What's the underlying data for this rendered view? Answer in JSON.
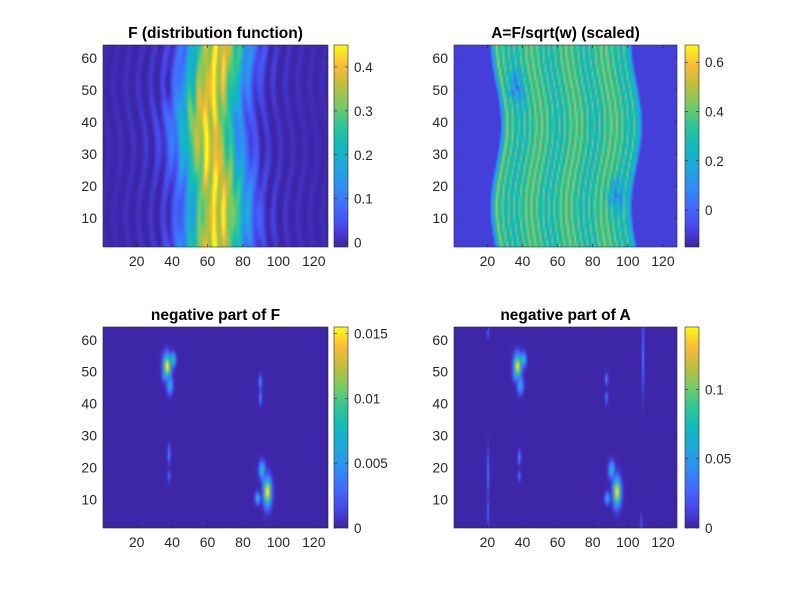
{
  "figure": {
    "background": "#ffffff",
    "colormap": "parula"
  },
  "chart_data": [
    {
      "type": "heatmap",
      "title": "F (distribution function)",
      "xlim": [
        1,
        128
      ],
      "ylim": [
        1,
        64
      ],
      "xticks": [
        20,
        40,
        60,
        80,
        100,
        120
      ],
      "yticks": [
        10,
        20,
        30,
        40,
        50,
        60
      ],
      "xtick_labels": [
        "20",
        "40",
        "60",
        "80",
        "100",
        "120"
      ],
      "ytick_labels": [
        "10",
        "20",
        "30",
        "40",
        "50",
        "60"
      ],
      "colorbar": {
        "ticks": [
          0,
          0.1,
          0.2,
          0.3,
          0.4
        ],
        "tick_labels": [
          "0",
          "0.1",
          "0.2",
          "0.3",
          "0.4"
        ],
        "clim": [
          -0.01,
          0.45
        ]
      },
      "field": {
        "kind": "distribution",
        "peak": 0.44,
        "center": 63,
        "width": 12,
        "wave_amp": 3,
        "background": -0.005,
        "streak_amp": 0.04,
        "vortices": [
          {
            "x": 37,
            "y": 50,
            "r": 5,
            "depth": 0.03
          },
          {
            "x": 92,
            "y": 17,
            "r": 5,
            "depth": 0.03
          }
        ]
      }
    },
    {
      "type": "heatmap",
      "title": "A=F/sqrt(w) (scaled)",
      "xlim": [
        1,
        128
      ],
      "ylim": [
        1,
        64
      ],
      "xticks": [
        20,
        40,
        60,
        80,
        100,
        120
      ],
      "yticks": [
        10,
        20,
        30,
        40,
        50,
        60
      ],
      "xtick_labels": [
        "20",
        "40",
        "60",
        "80",
        "100",
        "120"
      ],
      "ytick_labels": [
        "10",
        "20",
        "30",
        "40",
        "50",
        "60"
      ],
      "colorbar": {
        "ticks": [
          0,
          0.2,
          0.4,
          0.6
        ],
        "tick_labels": [
          "0",
          "0.2",
          "0.4",
          "0.6"
        ],
        "clim": [
          -0.15,
          0.67
        ]
      },
      "field": {
        "kind": "scaled",
        "background": -0.09,
        "band": [
          24,
          106
        ],
        "base": 0.26,
        "stripe_amp": 0.22,
        "wave_amp": 3,
        "vortices": [
          {
            "x": 36,
            "y": 51,
            "r": 5,
            "depth": 0.25
          },
          {
            "x": 93,
            "y": 17,
            "r": 5,
            "depth": 0.25
          }
        ]
      }
    },
    {
      "type": "heatmap",
      "title": "negative part of F",
      "xlim": [
        1,
        128
      ],
      "ylim": [
        1,
        64
      ],
      "xticks": [
        20,
        40,
        60,
        80,
        100,
        120
      ],
      "yticks": [
        10,
        20,
        30,
        40,
        50,
        60
      ],
      "xtick_labels": [
        "20",
        "40",
        "60",
        "80",
        "100",
        "120"
      ],
      "ytick_labels": [
        "10",
        "20",
        "30",
        "40",
        "50",
        "60"
      ],
      "colorbar": {
        "ticks": [
          0,
          0.005,
          0.01,
          0.015
        ],
        "tick_labels": [
          "0",
          "0.005",
          "0.01",
          "0.015"
        ],
        "clim": [
          0,
          0.0155
        ]
      },
      "field": {
        "kind": "sparse",
        "background": 0,
        "blobs": [
          {
            "x": 37,
            "y": 52,
            "sx": 1.5,
            "sy": 2.5,
            "v": 0.0155
          },
          {
            "x": 40,
            "y": 54,
            "sx": 1.2,
            "sy": 1.5,
            "v": 0.009
          },
          {
            "x": 38.5,
            "y": 46,
            "sx": 1.2,
            "sy": 1.8,
            "v": 0.007
          },
          {
            "x": 35.5,
            "y": 49.5,
            "sx": 1.0,
            "sy": 1.5,
            "v": 0.006
          },
          {
            "x": 90,
            "y": 47,
            "sx": 0.6,
            "sy": 1.5,
            "v": 0.005
          },
          {
            "x": 90,
            "y": 42,
            "sx": 0.6,
            "sy": 1.5,
            "v": 0.004
          },
          {
            "x": 38,
            "y": 24,
            "sx": 0.6,
            "sy": 2.0,
            "v": 0.004
          },
          {
            "x": 38,
            "y": 17,
            "sx": 0.6,
            "sy": 1.2,
            "v": 0.003
          },
          {
            "x": 94,
            "y": 12,
            "sx": 1.5,
            "sy": 3.0,
            "v": 0.0155
          },
          {
            "x": 91,
            "y": 19,
            "sx": 1.2,
            "sy": 1.8,
            "v": 0.008
          },
          {
            "x": 88.5,
            "y": 10,
            "sx": 1.0,
            "sy": 1.2,
            "v": 0.007
          },
          {
            "x": 92,
            "y": 15.5,
            "sx": 1.0,
            "sy": 1.0,
            "v": 0.005
          }
        ]
      }
    },
    {
      "type": "heatmap",
      "title": "negative part of A",
      "xlim": [
        1,
        128
      ],
      "ylim": [
        1,
        64
      ],
      "xticks": [
        20,
        40,
        60,
        80,
        100,
        120
      ],
      "yticks": [
        10,
        20,
        30,
        40,
        50,
        60
      ],
      "xtick_labels": [
        "20",
        "40",
        "60",
        "80",
        "100",
        "120"
      ],
      "ytick_labels": [
        "10",
        "20",
        "30",
        "40",
        "50",
        "60"
      ],
      "colorbar": {
        "ticks": [
          0,
          0.05,
          0.1
        ],
        "tick_labels": [
          "0",
          "0.05",
          "0.1"
        ],
        "clim": [
          0,
          0.145
        ]
      },
      "field": {
        "kind": "sparse",
        "background": 0,
        "blobs": [
          {
            "x": 37,
            "y": 52,
            "sx": 1.5,
            "sy": 2.5,
            "v": 0.14
          },
          {
            "x": 40,
            "y": 54,
            "sx": 1.2,
            "sy": 1.5,
            "v": 0.08
          },
          {
            "x": 38.5,
            "y": 46,
            "sx": 1.2,
            "sy": 1.8,
            "v": 0.06
          },
          {
            "x": 35.5,
            "y": 49.5,
            "sx": 1.0,
            "sy": 1.5,
            "v": 0.05
          },
          {
            "x": 88,
            "y": 48,
            "sx": 0.6,
            "sy": 1.2,
            "v": 0.04
          },
          {
            "x": 88,
            "y": 42,
            "sx": 0.6,
            "sy": 1.2,
            "v": 0.035
          },
          {
            "x": 38,
            "y": 23,
            "sx": 0.6,
            "sy": 1.5,
            "v": 0.04
          },
          {
            "x": 38,
            "y": 17,
            "sx": 0.6,
            "sy": 1.0,
            "v": 0.03
          },
          {
            "x": 94,
            "y": 12,
            "sx": 1.5,
            "sy": 3.0,
            "v": 0.14
          },
          {
            "x": 91,
            "y": 19,
            "sx": 1.2,
            "sy": 1.8,
            "v": 0.07
          },
          {
            "x": 88.5,
            "y": 10,
            "sx": 1.0,
            "sy": 1.2,
            "v": 0.06
          },
          {
            "x": 20,
            "y": 63,
            "sx": 0.5,
            "sy": 1.5,
            "v": 0.02
          },
          {
            "x": 20,
            "y": 18,
            "sx": 0.5,
            "sy": 5.0,
            "v": 0.03
          },
          {
            "x": 20,
            "y": 6,
            "sx": 0.5,
            "sy": 3.0,
            "v": 0.025
          },
          {
            "x": 109,
            "y": 55,
            "sx": 0.5,
            "sy": 8.0,
            "v": 0.03
          },
          {
            "x": 108,
            "y": 2,
            "sx": 0.5,
            "sy": 2.0,
            "v": 0.02
          }
        ]
      }
    }
  ]
}
